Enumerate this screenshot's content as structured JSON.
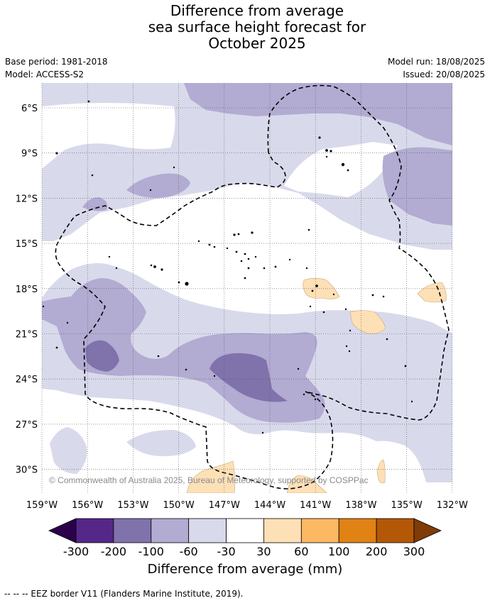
{
  "title_lines": [
    "Difference from average",
    "sea surface height forecast for",
    "October 2025"
  ],
  "meta": {
    "base_period": "Base period: 1981-2018",
    "model": "Model: ACCESS-S2",
    "model_run": "Model run: 18/08/2025",
    "issued": "Issued: 20/08/2025"
  },
  "map": {
    "lat_labels": [
      "6°S",
      "9°S",
      "12°S",
      "15°S",
      "18°S",
      "21°S",
      "24°S",
      "27°S",
      "30°S"
    ],
    "lon_labels": [
      "159°W",
      "156°W",
      "153°W",
      "150°W",
      "147°W",
      "144°W",
      "141°W",
      "138°W",
      "135°W",
      "132°W"
    ],
    "copyright": "© Commonwealth of Australia 2025, Bureau of Meteorology, supported by COSPPac"
  },
  "colorbar": {
    "ticks": [
      "-300",
      "-200",
      "-100",
      "-60",
      "-30",
      "30",
      "60",
      "100",
      "200",
      "300"
    ],
    "colors": [
      "#2d004b",
      "#542788",
      "#8073ac",
      "#b2abd2",
      "#d8daeb",
      "#ffffff",
      "#fee0b6",
      "#fdb863",
      "#e08214",
      "#b35806",
      "#7f3b08"
    ],
    "label": "Difference from average (mm)"
  },
  "footer": "--  --  -- EEZ border V11 (Flanders Marine Institute, 2019)."
}
